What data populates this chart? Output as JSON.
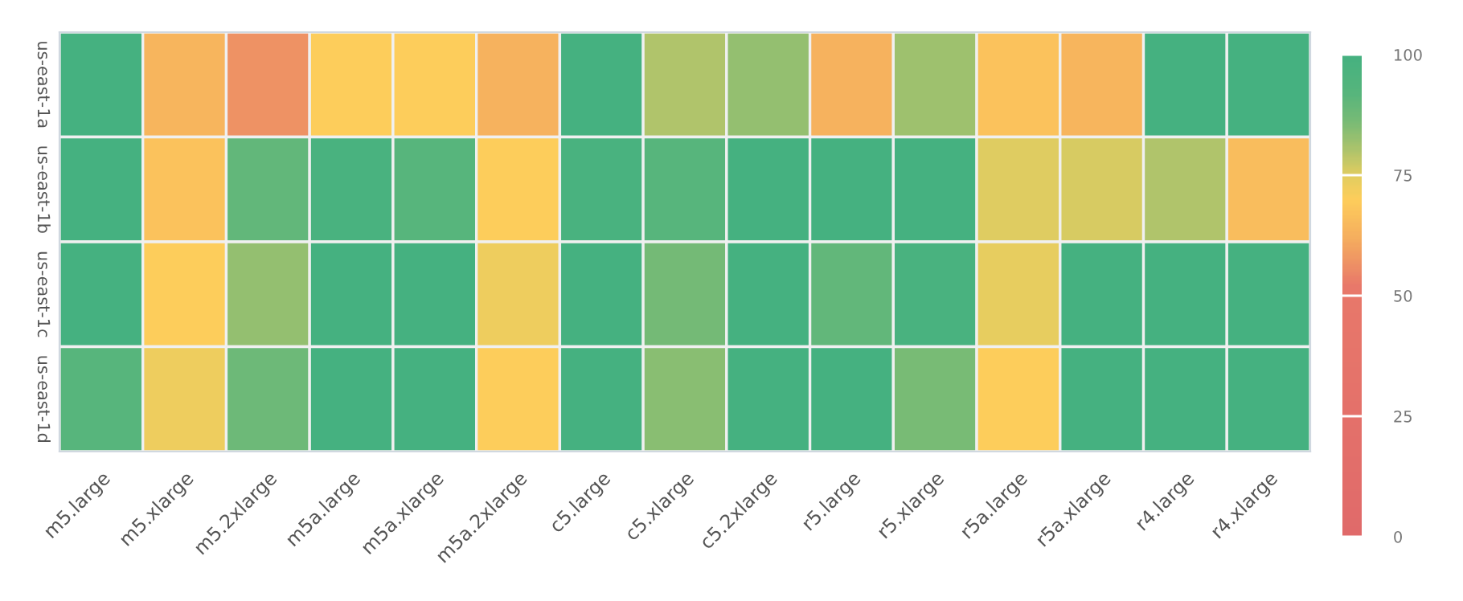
{
  "chart_data": {
    "type": "heatmap",
    "categories": [
      "m5.large",
      "m5.xlarge",
      "m5.2xlarge",
      "m5a.large",
      "m5a.xlarge",
      "m5a.2xlarge",
      "c5.large",
      "c5.xlarge",
      "c5.2xlarge",
      "r5.large",
      "r5.xlarge",
      "r5a.large",
      "r5a.xlarge",
      "r4.large",
      "r4.xlarge"
    ],
    "y_categories": [
      "us-east-1a",
      "us-east-1b",
      "us-east-1c",
      "us-east-1d"
    ],
    "cells": [
      [
        100,
        64,
        57,
        70,
        70,
        63,
        100,
        80,
        83,
        63,
        82,
        67,
        64,
        100,
        100
      ],
      [
        100,
        67,
        90,
        98,
        92,
        70,
        98,
        92,
        100,
        100,
        100,
        75,
        76,
        80,
        66
      ],
      [
        100,
        70,
        83,
        100,
        100,
        73,
        100,
        87,
        100,
        90,
        98,
        74,
        100,
        100,
        100
      ],
      [
        92,
        73,
        88,
        100,
        100,
        70,
        100,
        84,
        100,
        100,
        86,
        70,
        100,
        100,
        100
      ]
    ],
    "clim": [
      0,
      100
    ],
    "cticks": [
      0,
      25,
      50,
      75,
      100
    ]
  }
}
